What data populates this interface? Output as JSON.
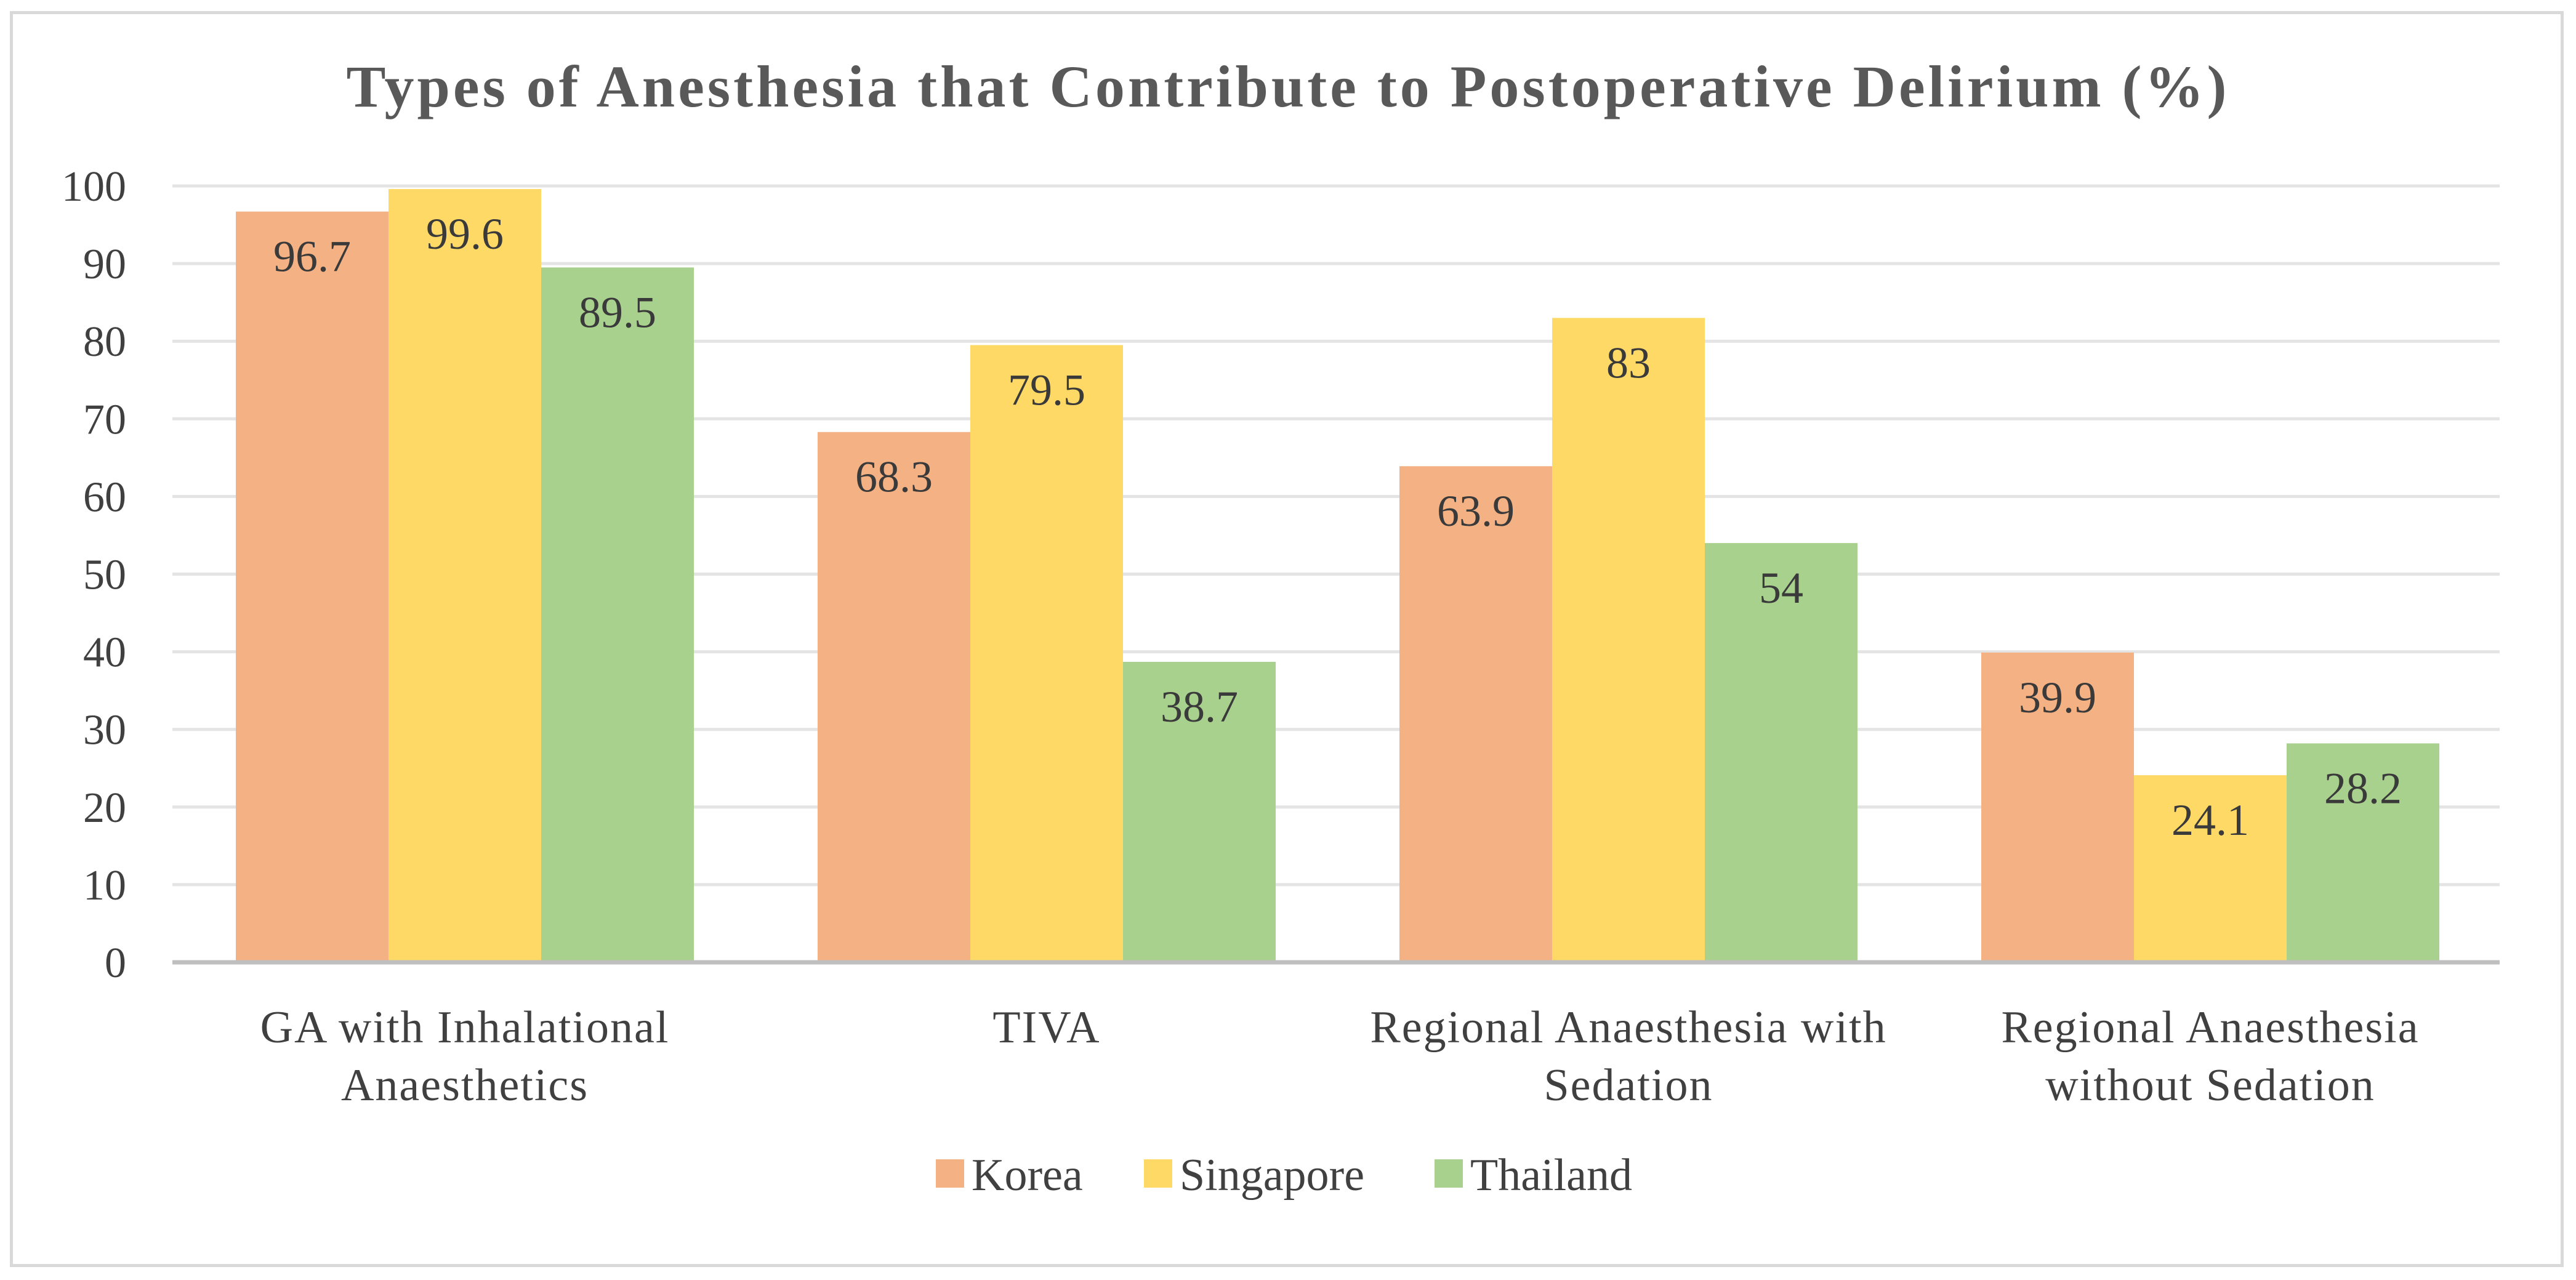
{
  "chart_data": {
    "type": "bar",
    "title": "Types of Anesthesia that Contribute to Postoperative Delirium (%)",
    "categories": [
      [
        "GA with Inhalational",
        "Anaesthetics"
      ],
      [
        "TIVA"
      ],
      [
        "Regional Anaesthesia with",
        "Sedation"
      ],
      [
        "Regional Anaesthesia",
        "without Sedation"
      ]
    ],
    "series": [
      {
        "name": "Korea",
        "color": "#f4b183",
        "values": [
          96.7,
          68.3,
          63.9,
          39.9
        ]
      },
      {
        "name": "Singapore",
        "color": "#ffd966",
        "values": [
          99.6,
          79.5,
          83,
          24.1
        ]
      },
      {
        "name": "Thailand",
        "color": "#a9d18e",
        "values": [
          89.5,
          38.7,
          54,
          28.2
        ]
      }
    ],
    "ylim": [
      0,
      100
    ],
    "yticks": [
      0,
      10,
      20,
      30,
      40,
      50,
      60,
      70,
      80,
      90,
      100
    ],
    "gridlines": true,
    "legend_position": "bottom",
    "xlabel": "",
    "ylabel": ""
  }
}
